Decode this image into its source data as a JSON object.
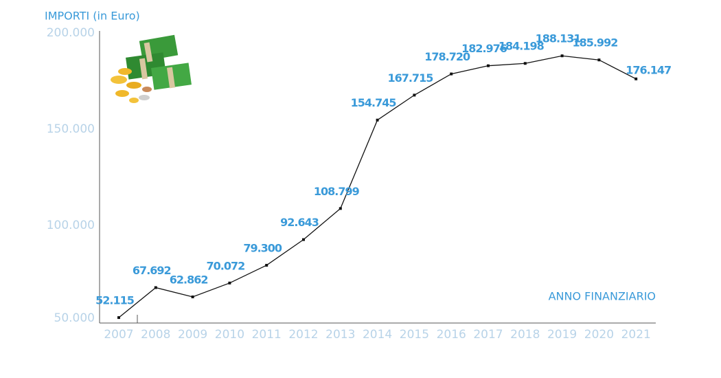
{
  "chart_data": {
    "type": "line",
    "y_label": "IMPORTI (in Euro)",
    "x_label": "ANNO FINANZIARIO",
    "categories": [
      "2007",
      "2008",
      "2009",
      "2010",
      "2011",
      "2012",
      "2013",
      "2014",
      "2015",
      "2016",
      "2017",
      "2018",
      "2019",
      "2020",
      "2021"
    ],
    "series": [
      {
        "color": "#111111",
        "values": [
          52115,
          67692,
          62862,
          70072,
          79300,
          92643,
          108799,
          154745,
          167715,
          178720,
          182976,
          184198,
          188131,
          185992,
          176147
        ],
        "value_labels": [
          "52.115",
          "67.692",
          "62.862",
          "70.072",
          "79.300",
          "92.643",
          "108.799",
          "154.745",
          "167.715",
          "178.720",
          "182.976",
          "184.198",
          "188.131",
          "185.992",
          "176.147"
        ]
      }
    ],
    "value_label_color": "#3a9ad9",
    "axis_label_color": "#b8d3e8",
    "ylim": [
      50000,
      200000
    ],
    "yticks": [
      {
        "value": 50000,
        "label": "50.000"
      },
      {
        "value": 100000,
        "label": "100.000"
      },
      {
        "value": 150000,
        "label": "150.000"
      },
      {
        "value": 200000,
        "label": "200.000"
      }
    ],
    "grid": false
  }
}
